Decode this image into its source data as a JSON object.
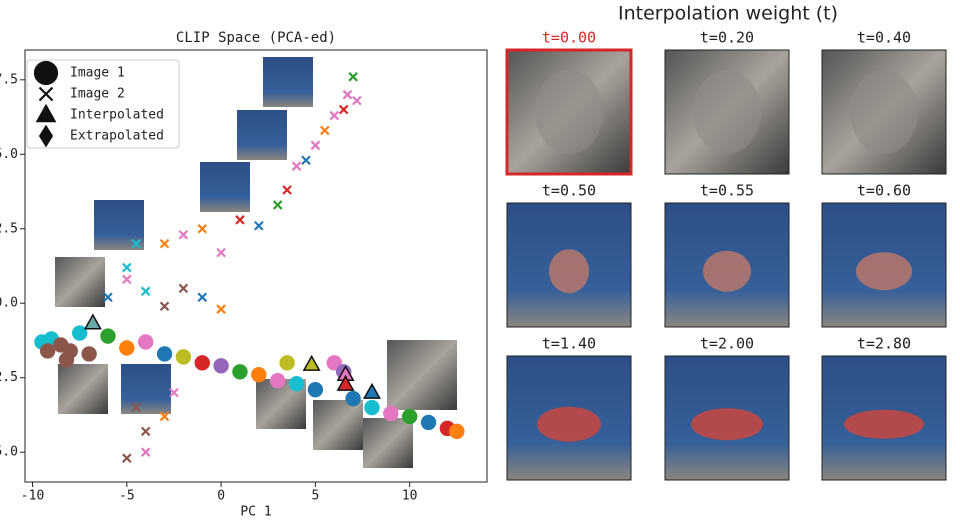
{
  "chart_data": {
    "type": "scatter",
    "title": "CLIP Space (PCA-ed)",
    "x_label": "PC 1",
    "xlim": [
      -10.4,
      14.1
    ],
    "ylim": [
      -6.0,
      8.5
    ],
    "xticks": [
      -10,
      -5,
      0,
      5,
      10
    ],
    "yticks": [
      {
        "value": 7.5,
        "label": "7.5"
      },
      {
        "value": 5,
        "label": "5.0"
      },
      {
        "value": 2.5,
        "label": "2.5"
      },
      {
        "value": 0,
        "label": "0.0"
      },
      {
        "value": -2.5,
        "label": "-2.5"
      },
      {
        "value": -5,
        "label": "-5.0"
      }
    ],
    "legend": "upper left",
    "series": [
      {
        "name": "Image 1",
        "marker": "circle",
        "x": [
          -9.5,
          -9,
          -8.5,
          -8,
          -7.5,
          -6,
          -5,
          -4,
          -3,
          -2,
          -1,
          0,
          1,
          2,
          3,
          4,
          5,
          6,
          6.5,
          7,
          8,
          9,
          10,
          11,
          12,
          12.5,
          -9.2,
          -8.2,
          -7,
          3.5
        ],
        "values": [
          -1.3,
          -1.2,
          -1.4,
          -1.6,
          -1.0,
          -1.1,
          -1.5,
          -1.3,
          -1.7,
          -1.8,
          -2.0,
          -2.1,
          -2.3,
          -2.4,
          -2.6,
          -2.7,
          -2.9,
          -2.0,
          -2.3,
          -3.2,
          -3.5,
          -3.7,
          -3.8,
          -4.0,
          -4.2,
          -4.3,
          -1.6,
          -1.9,
          -1.7,
          -2.0
        ],
        "colors": [
          "#17becf",
          "#17becf",
          "#8c564b",
          "#8c564b",
          "#17becf",
          "#2ca02c",
          "#ff7f0e",
          "#e377c2",
          "#1f77b4",
          "#bcbd22",
          "#d62728",
          "#9467bd",
          "#2ca02c",
          "#ff7f0e",
          "#e377c2",
          "#17becf",
          "#1f77b4",
          "#e377c2",
          "#9467bd",
          "#1f77b4",
          "#17becf",
          "#e377c2",
          "#2ca02c",
          "#1f77b4",
          "#d62728",
          "#ff7f0e",
          "#8c564b",
          "#8c564b",
          "#8c564b",
          "#bcbd22"
        ]
      },
      {
        "name": "Image 2",
        "marker": "x",
        "x": [
          -4,
          -5,
          -4.5,
          -3,
          -2,
          -1,
          0,
          1,
          2,
          3,
          3.5,
          4,
          4.5,
          5,
          5.5,
          6,
          6.5,
          6.7,
          7,
          7.2,
          -2,
          -1,
          0,
          -3,
          -6,
          -5,
          -4.5,
          -4,
          -5,
          -4,
          -3,
          -2.5
        ],
        "values": [
          0.4,
          1.2,
          2.0,
          2.0,
          2.3,
          2.5,
          1.7,
          2.8,
          2.6,
          3.3,
          3.8,
          4.6,
          4.8,
          5.3,
          5.8,
          6.3,
          6.5,
          7.0,
          7.6,
          6.8,
          0.5,
          0.2,
          -0.2,
          -0.1,
          0.2,
          0.8,
          -3.5,
          -4.3,
          -5.2,
          -5.0,
          -3.8,
          -3.0
        ],
        "colors": [
          "#17becf",
          "#17becf",
          "#17becf",
          "#ff7f0e",
          "#e377c2",
          "#ff7f0e",
          "#e377c2",
          "#d62728",
          "#1f77b4",
          "#2ca02c",
          "#d62728",
          "#e377c2",
          "#1f77b4",
          "#e377c2",
          "#ff7f0e",
          "#e377c2",
          "#d62728",
          "#e377c2",
          "#2ca02c",
          "#e377c2",
          "#8c564b",
          "#1f77b4",
          "#ff7f0e",
          "#8c564b",
          "#1f77b4",
          "#e377c2",
          "#8c564b",
          "#8c564b",
          "#8c564b",
          "#e377c2",
          "#ff7f0e",
          "#e377c2"
        ]
      },
      {
        "name": "Interpolated",
        "marker": "triangle",
        "x": [
          -6.8,
          4.8,
          6.6,
          6.6,
          8.0
        ],
        "values": [
          -0.67,
          -2.06,
          -2.4,
          -2.73,
          -3.0
        ],
        "colors": [
          "#6aa8a8",
          "#bcbd22",
          "#e377c2",
          "#d62728",
          "#1f77b4"
        ]
      },
      {
        "name": "Extrapolated",
        "marker": "diamond",
        "x": [],
        "values": [],
        "colors": []
      }
    ]
  },
  "images": {
    "title": "Interpolation weight (t)",
    "labels": [
      "t=0.00",
      "t=0.20",
      "t=0.40",
      "t=0.50",
      "t=0.55",
      "t=0.60",
      "t=1.40",
      "t=2.00",
      "t=2.80"
    ],
    "highlight_color": "#d62728"
  }
}
